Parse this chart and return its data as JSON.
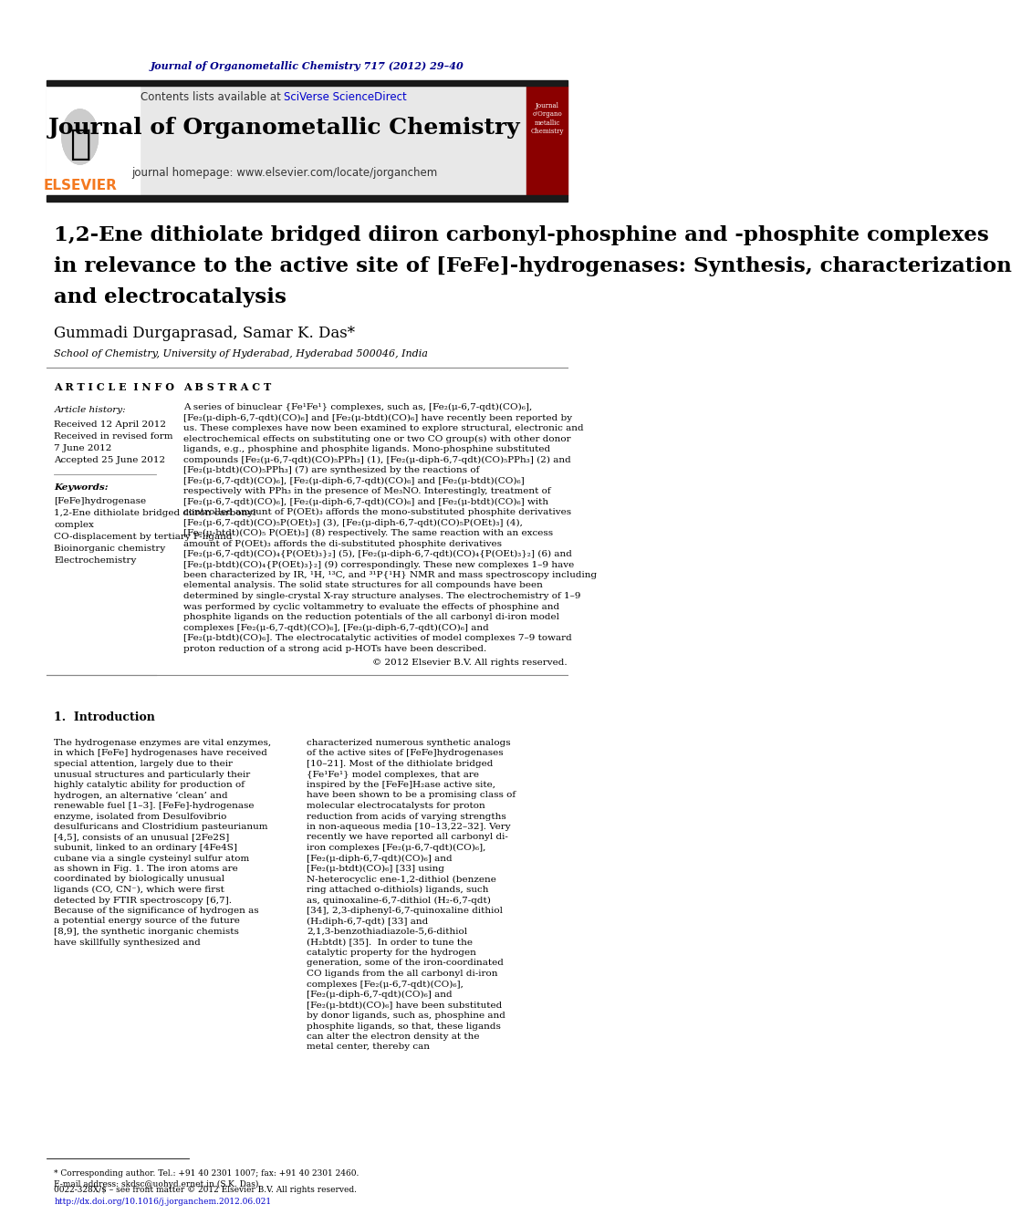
{
  "journal_ref": "Journal of Organometallic Chemistry 717 (2012) 29–40",
  "journal_name": "Journal of Organometallic Chemistry",
  "contents_line": "Contents lists available at SciVerse ScienceDirect",
  "homepage": "journal homepage: www.elsevier.com/locate/jorganchem",
  "title": "1,2-Ene dithiolate bridged diiron carbonyl-phosphine and -phosphite complexes\nin relevance to the active site of [FeFe]-hydrogenases: Synthesis, characterization\nand electrocatalysis",
  "authors": "Gummadi Durgaprasad, Samar K. Das*",
  "affiliation": "School of Chemistry, University of Hyderabad, Hyderabad 500046, India",
  "article_info_title": "A R T I C L E  I N F O",
  "abstract_title": "A B S T R A C T",
  "article_history_label": "Article history:",
  "received": "Received 12 April 2012",
  "received_revised": "Received in revised form",
  "revised_date": "7 June 2012",
  "accepted": "Accepted 25 June 2012",
  "keywords_label": "Keywords:",
  "keywords": [
    "[FeFe]hydrogenase",
    "1,2-Ene dithiolate bridged diiron carbonyl\ncomplex",
    "CO-displacement by tertiary P-ligand",
    "Bioinorganic chemistry",
    "Electrochemistry"
  ],
  "abstract_text": "A series of binuclear {Fe¹Fe¹} complexes, such as, [Fe₂(μ-6,7-qdt)(CO)₆], [Fe₂(μ-diph-6,7-qdt)(CO)₆] and [Fe₂(μ-btdt)(CO)₆] have recently been reported by us. These complexes have now been examined to explore structural, electronic and electrochemical effects on substituting one or two CO group(s) with other donor ligands, e.g., phosphine and phosphite ligands. Mono-phosphine substituted compounds [Fe₂(μ-6,7-qdt)(CO)₅PPh₃] (1), [Fe₂(μ-diph-6,7-qdt)(CO)₅PPh₃] (2) and [Fe₂(μ-btdt)(CO)₅PPh₃] (7) are synthesized by the reactions of [Fe₂(μ-6,7-qdt)(CO)₆], [Fe₂(μ-diph-6,7-qdt)(CO)₆] and [Fe₂(μ-btdt)(CO)₆] respectively with PPh₃ in the presence of Me₃NO. Interestingly, treatment of [Fe₂(μ-6,7-qdt)(CO)₆], [Fe₂(μ-diph-6,7-qdt)(CO)₆] and [Fe₂(μ-btdt)(CO)₆] with controlled amount of P(OEt)₃ affords the mono-substituted phosphite derivatives [Fe₂(μ-6,7-qdt)(CO)₅P(OEt)₃] (3), [Fe₂(μ-diph-6,7-qdt)(CO)₅P(OEt)₃] (4), [Fe₂(μ-btdt)(CO)₅ P(OEt)₃] (8) respectively. The same reaction with an excess amount of P(OEt)₃ affords the di-substituted phosphite derivatives [Fe₂(μ-6,7-qdt)(CO)₄{P(OEt)₃}₂] (5), [Fe₂(μ-diph-6,7-qdt)(CO)₄{P(OEt)₃}₂] (6) and [Fe₂(μ-btdt)(CO)₄{P(OEt)₃}₂] (9) correspondingly. These new complexes 1–9 have been characterized by IR, ¹H, ¹³C, and ³¹P{¹H} NMR and mass spectroscopy including elemental analysis. The solid state structures for all compounds have been determined by single-crystal X-ray structure analyses. The electrochemistry of 1–9 was performed by cyclic voltammetry to evaluate the effects of phosphine and phosphite ligands on the reduction potentials of the all carbonyl di-iron model complexes [Fe₂(μ-6,7-qdt)(CO)₆], [Fe₂(μ-diph-6,7-qdt)(CO)₆] and [Fe₂(μ-btdt)(CO)₆]. The electrocatalytic activities of model complexes 7–9 toward proton reduction of a strong acid p-HOTs have been described.",
  "copyright": "© 2012 Elsevier B.V. All rights reserved.",
  "intro_title": "1.  Introduction",
  "intro_text_left": "The hydrogenase enzymes are vital enzymes, in which [FeFe] hydrogenases have received special attention, largely due to their unusual structures and particularly their highly catalytic ability for production of hydrogen, an alternative ‘clean’ and renewable fuel [1–3]. [FeFe]-hydrogenase enzyme, isolated from Desulfovibrio desulfuricans and Clostridium pasteurianum [4,5], consists of an unusual [2Fe2S] subunit, linked to an ordinary [4Fe4S] cubane via a single cysteinyl sulfur atom as shown in Fig. 1. The iron atoms are coordinated by biologically unusual ligands (CO, CN⁻), which were first detected by FTIR spectroscopy [6,7]. Because of the significance of hydrogen as a potential energy source of the future [8,9], the synthetic inorganic chemists have skillfully synthesized and",
  "intro_text_right": "characterized numerous synthetic analogs of the active sites of [FeFe]hydrogenases [10–21]. Most of the dithiolate bridged {Fe¹Fe¹} model complexes, that are inspired by the [FeFe]H₂ase active site, have been shown to be a promising class of molecular electrocatalysts for proton reduction from acids of varying strengths in non-aqueous media [10–13,22–32]. Very recently we have reported all carbonyl di-iron complexes [Fe₂(μ-6,7-qdt)(CO)₆], [Fe₂(μ-diph-6,7-qdt)(CO)₆] and [Fe₂(μ-btdt)(CO)₆] [33] using N-heterocyclic ene-1,2-dithiol (benzene ring attached o-dithiols) ligands, such as, quinoxaline-6,7-dithiol (H₂-6,7-qdt) [34], 2,3-diphenyl-6,7-quinoxaline dithiol (H₂diph-6,7-qdt) [33] and 2,1,3-benzothiadiazole-5,6-dithiol (H₂btdt) [35].\n\nIn order to tune the catalytic property for the hydrogen generation, some of the iron-coordinated CO ligands from the all carbonyl di-iron complexes [Fe₂(μ-6,7-qdt)(CO)₆], [Fe₂(μ-diph-6,7-qdt)(CO)₆] and [Fe₂(μ-btdt)(CO)₆] have been substituted by donor ligands, such as, phosphine and phosphite ligands, so that, these ligands can alter the electron density at the metal center, thereby can",
  "footnote_star": "* Corresponding author. Tel.: +91 40 2301 1007; fax: +91 40 2301 2460.",
  "footnote_email": "E-mail address: skdsc@uohyd.ernet.in (S.K. Das).",
  "issn": "0022-328X/$ – see front matter © 2012 Elsevier B.V. All rights reserved.",
  "doi": "http://dx.doi.org/10.1016/j.jorganchem.2012.06.021",
  "bg_color": "#ffffff",
  "header_bg": "#e8e8e8",
  "elsevier_orange": "#f47920",
  "link_blue": "#0000cc",
  "journal_ref_blue": "#00008b",
  "thick_bar_color": "#1a1a1a",
  "section_line_color": "#888888"
}
